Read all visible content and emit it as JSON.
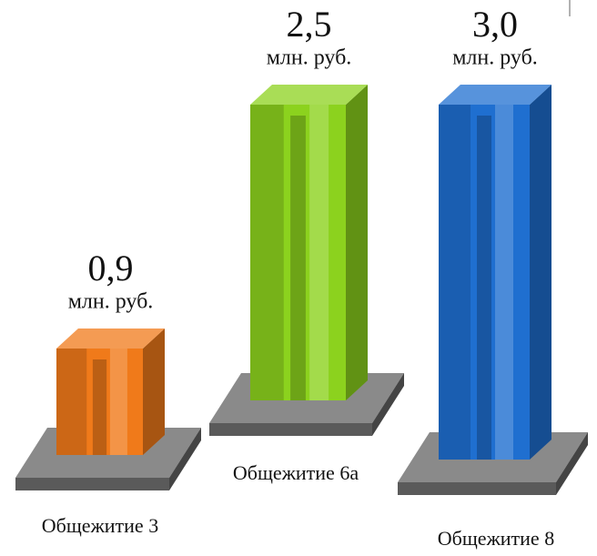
{
  "chart_data": {
    "type": "bar",
    "categories": [
      "Общежитие 3",
      "Общежитие 6а",
      "Общежитие 8"
    ],
    "values": [
      0.9,
      2.5,
      3.0
    ],
    "value_labels": [
      "0,9",
      "2,5",
      "3,0"
    ],
    "value_unit": "млн. руб.",
    "colors": [
      "#f07a1a",
      "#8cd21e",
      "#1f6fd0"
    ]
  }
}
